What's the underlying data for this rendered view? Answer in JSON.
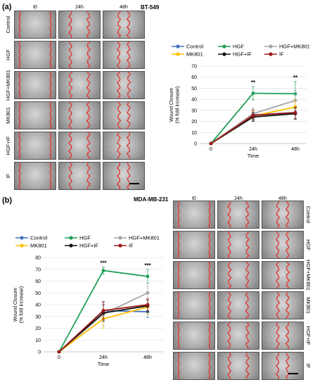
{
  "panel_a": {
    "letter": "(a)",
    "cell_line": "BT-549",
    "columns": [
      "t0",
      "24h",
      "48h"
    ],
    "rows": [
      "Control",
      "HGF",
      "HGF+MK801",
      "MK801",
      "HGF+IF",
      "IF"
    ]
  },
  "panel_b": {
    "letter": "(b)",
    "cell_line": "MDA-MB-231",
    "columns": [
      "t0",
      "24h",
      "48h"
    ],
    "rows": [
      "Control",
      "HGF",
      "HGF+MK801",
      "MK801",
      "HGF+IF",
      "IF"
    ]
  },
  "colors": {
    "Control": "#4472c4",
    "HGF": "#21a05a",
    "HGF+MK801": "#a5a5a5",
    "MK801": "#ffc000",
    "HGF+IF": "#111111",
    "IF": "#9e1a1a",
    "wound_line": "#e03a3a"
  },
  "chart_data": [
    {
      "type": "line",
      "x": [
        "0",
        "24h",
        "48h"
      ],
      "xlabel": "Time",
      "ylabel": "Wound Closure\n(% fold increase)",
      "ylim": [
        0,
        70
      ],
      "yticks": [
        0,
        10,
        20,
        30,
        40,
        50,
        60,
        70
      ],
      "legend_position": "top",
      "annotations": [
        {
          "x": "24h",
          "text": "**"
        },
        {
          "x": "48h",
          "text": "**"
        }
      ],
      "series": [
        {
          "name": "Control",
          "values": [
            0,
            26,
            28
          ],
          "errors": [
            0,
            5,
            6
          ]
        },
        {
          "name": "HGF",
          "values": [
            0,
            45.5,
            45
          ],
          "errors": [
            0,
            6,
            11
          ]
        },
        {
          "name": "HGF+MK801",
          "values": [
            0,
            27,
            39
          ],
          "errors": [
            0,
            5,
            9
          ]
        },
        {
          "name": "MK801",
          "values": [
            0,
            25,
            33
          ],
          "errors": [
            0,
            5,
            6
          ]
        },
        {
          "name": "HGF+IF",
          "values": [
            0,
            24,
            27
          ],
          "errors": [
            0,
            4,
            5
          ]
        },
        {
          "name": "IF",
          "values": [
            0,
            25.5,
            28
          ],
          "errors": [
            0,
            4,
            5
          ]
        }
      ]
    },
    {
      "type": "line",
      "x": [
        "0",
        "24h",
        "48h"
      ],
      "xlabel": "Time",
      "ylabel": "Wound Closure\n(% fold increase)",
      "ylim": [
        0,
        80
      ],
      "yticks": [
        0,
        10,
        20,
        30,
        40,
        50,
        60,
        70,
        80
      ],
      "legend_position": "top",
      "annotations": [
        {
          "x": "24h",
          "text": "***"
        },
        {
          "x": "48h",
          "text": "***"
        }
      ],
      "series": [
        {
          "name": "Control",
          "values": [
            0,
            35,
            34
          ],
          "errors": [
            0,
            8,
            5
          ]
        },
        {
          "name": "HGF",
          "values": [
            0,
            69,
            64
          ],
          "errors": [
            0,
            3,
            6
          ]
        },
        {
          "name": "HGF+MK801",
          "values": [
            0,
            32,
            50
          ],
          "errors": [
            0,
            10,
            6
          ]
        },
        {
          "name": "MK801",
          "values": [
            0,
            28,
            38
          ],
          "errors": [
            0,
            8,
            6
          ]
        },
        {
          "name": "HGF+IF",
          "values": [
            0,
            33,
            39
          ],
          "errors": [
            0,
            7,
            5
          ]
        },
        {
          "name": "IF",
          "values": [
            0,
            35,
            40
          ],
          "errors": [
            0,
            7,
            5
          ]
        }
      ]
    }
  ]
}
